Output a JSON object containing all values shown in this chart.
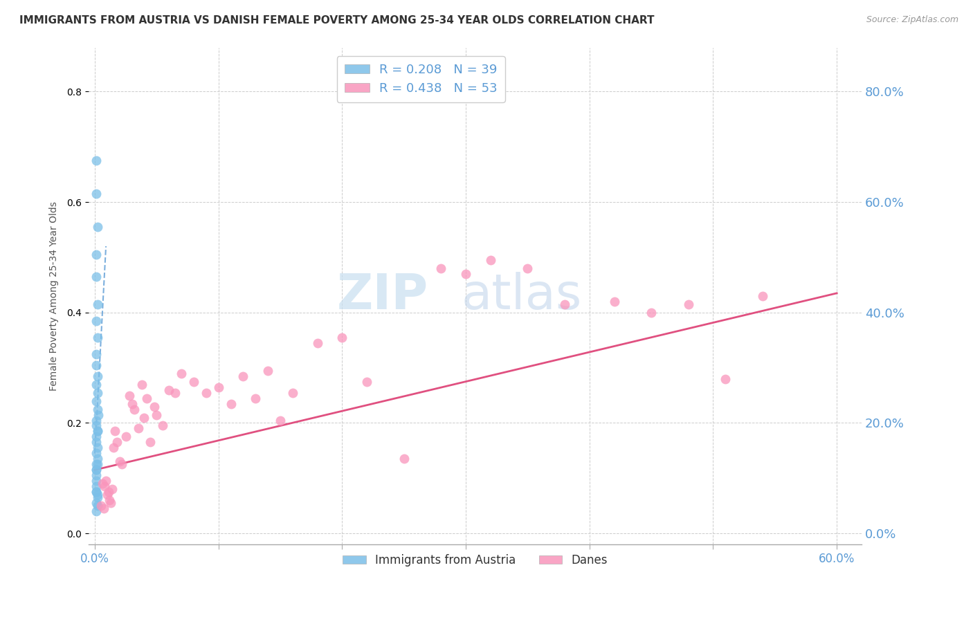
{
  "title": "IMMIGRANTS FROM AUSTRIA VS DANISH FEMALE POVERTY AMONG 25-34 YEAR OLDS CORRELATION CHART",
  "source": "Source: ZipAtlas.com",
  "ylabel": "Female Poverty Among 25-34 Year Olds",
  "legend1_label": "Immigrants from Austria",
  "legend2_label": "Danes",
  "R1": 0.208,
  "N1": 39,
  "R2": 0.438,
  "N2": 53,
  "color1": "#7bbfe8",
  "color2": "#f995bb",
  "trendline1_color": "#5b9bd5",
  "trendline2_color": "#e05080",
  "xlim": [
    -0.005,
    0.62
  ],
  "ylim": [
    -0.02,
    0.88
  ],
  "xtick_positions": [
    0.0,
    0.1,
    0.2,
    0.3,
    0.4,
    0.5,
    0.6
  ],
  "xtick_labels": [
    "0.0%",
    "",
    "",
    "",
    "",
    "",
    "60.0%"
  ],
  "yticks_right": [
    0.0,
    0.2,
    0.4,
    0.6,
    0.8
  ],
  "background_color": "#ffffff",
  "scatter1_x": [
    0.001,
    0.001,
    0.002,
    0.001,
    0.001,
    0.002,
    0.001,
    0.002,
    0.001,
    0.001,
    0.002,
    0.001,
    0.002,
    0.001,
    0.002,
    0.001,
    0.001,
    0.002,
    0.001,
    0.001,
    0.002,
    0.001,
    0.002,
    0.001,
    0.001,
    0.002,
    0.001,
    0.001,
    0.003,
    0.002,
    0.001,
    0.001,
    0.001,
    0.002,
    0.001,
    0.001,
    0.002,
    0.001,
    0.002
  ],
  "scatter1_y": [
    0.675,
    0.615,
    0.555,
    0.505,
    0.465,
    0.415,
    0.385,
    0.355,
    0.325,
    0.305,
    0.285,
    0.27,
    0.255,
    0.24,
    0.225,
    0.205,
    0.195,
    0.185,
    0.175,
    0.165,
    0.155,
    0.145,
    0.135,
    0.125,
    0.115,
    0.185,
    0.105,
    0.095,
    0.215,
    0.125,
    0.115,
    0.085,
    0.075,
    0.065,
    0.075,
    0.055,
    0.07,
    0.04,
    0.05
  ],
  "scatter2_x": [
    0.005,
    0.008,
    0.01,
    0.012,
    0.007,
    0.009,
    0.011,
    0.013,
    0.006,
    0.014,
    0.015,
    0.018,
    0.02,
    0.016,
    0.022,
    0.025,
    0.028,
    0.03,
    0.035,
    0.032,
    0.04,
    0.038,
    0.042,
    0.045,
    0.05,
    0.055,
    0.048,
    0.06,
    0.065,
    0.07,
    0.08,
    0.09,
    0.1,
    0.11,
    0.12,
    0.13,
    0.14,
    0.15,
    0.16,
    0.18,
    0.2,
    0.22,
    0.25,
    0.28,
    0.3,
    0.32,
    0.35,
    0.38,
    0.42,
    0.45,
    0.48,
    0.51,
    0.54
  ],
  "scatter2_y": [
    0.05,
    0.085,
    0.07,
    0.06,
    0.045,
    0.095,
    0.075,
    0.055,
    0.09,
    0.08,
    0.155,
    0.165,
    0.13,
    0.185,
    0.125,
    0.175,
    0.25,
    0.235,
    0.19,
    0.225,
    0.21,
    0.27,
    0.245,
    0.165,
    0.215,
    0.195,
    0.23,
    0.26,
    0.255,
    0.29,
    0.275,
    0.255,
    0.265,
    0.235,
    0.285,
    0.245,
    0.295,
    0.205,
    0.255,
    0.345,
    0.355,
    0.275,
    0.135,
    0.48,
    0.47,
    0.495,
    0.48,
    0.415,
    0.42,
    0.4,
    0.415,
    0.28,
    0.43
  ],
  "trendline1_x": [
    0.0,
    0.009
  ],
  "trendline1_y": [
    0.145,
    0.52
  ],
  "trendline2_x": [
    0.0,
    0.6
  ],
  "trendline2_y": [
    0.115,
    0.435
  ]
}
